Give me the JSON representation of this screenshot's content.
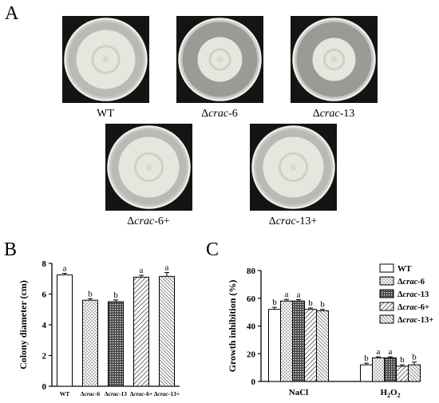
{
  "panels": {
    "a": "A",
    "b": "B",
    "c": "C"
  },
  "plates": [
    {
      "id": "wt",
      "pre": "WT",
      "it": "",
      "post": ""
    },
    {
      "id": "crac6",
      "pre": "Δ",
      "it": "crac",
      "post": "-6"
    },
    {
      "id": "crac13",
      "pre": "Δ",
      "it": "crac",
      "post": "-13"
    },
    {
      "id": "crac6c",
      "pre": "Δ",
      "it": "crac",
      "post": "-6+"
    },
    {
      "id": "crac13c",
      "pre": "Δ",
      "it": "crac",
      "post": "-13+"
    }
  ],
  "colors": {
    "plate_dark": "#141414",
    "agar": "#9a9b94",
    "colony": "#e6e6df",
    "bar_edge": "#000000"
  },
  "chart_data": [
    {
      "type": "bar",
      "ylabel": "Colony diameter (cm)",
      "ylim": [
        0,
        8
      ],
      "yticks": [
        0,
        2,
        4,
        6,
        8
      ],
      "categories": [
        {
          "pre": "WT",
          "it": "",
          "post": ""
        },
        {
          "pre": "Δ",
          "it": "crac",
          "post": "-6"
        },
        {
          "pre": "Δ",
          "it": "crac",
          "post": "-13"
        },
        {
          "pre": "Δ",
          "it": "crac",
          "post": "-6+"
        },
        {
          "pre": "Δ",
          "it": "crac",
          "post": "-13+"
        }
      ],
      "values": [
        7.25,
        5.6,
        5.5,
        7.1,
        7.15
      ],
      "errors": [
        0.1,
        0.1,
        0.12,
        0.12,
        0.25
      ],
      "letters": [
        "a",
        "b",
        "b",
        "a",
        "a"
      ],
      "patterns": [
        "none",
        "dots",
        "dense",
        "diag",
        "diag2"
      ]
    },
    {
      "type": "bar",
      "ylabel": "Growth inhibition (%)",
      "ylim": [
        0,
        80
      ],
      "yticks": [
        0,
        20,
        40,
        60,
        80
      ],
      "groups": [
        "NaCl",
        "H2O2"
      ],
      "series": [
        {
          "pre": "WT",
          "it": "",
          "post": "",
          "pattern": "none",
          "values": [
            52,
            12
          ],
          "errors": [
            1.5,
            1.2
          ],
          "letters": [
            "b",
            "b"
          ]
        },
        {
          "pre": "Δ",
          "it": "crac",
          "post": "-6",
          "pattern": "dots",
          "values": [
            58,
            17
          ],
          "errors": [
            1.2,
            0.8
          ],
          "letters": [
            "a",
            "a"
          ]
        },
        {
          "pre": "Δ",
          "it": "crac",
          "post": "-13",
          "pattern": "dense",
          "values": [
            58,
            17
          ],
          "errors": [
            1.0,
            0.8
          ],
          "letters": [
            "a",
            "a"
          ]
        },
        {
          "pre": "Δ",
          "it": "crac",
          "post": "-6+",
          "pattern": "diag",
          "values": [
            52,
            11
          ],
          "errors": [
            1.0,
            1.0
          ],
          "letters": [
            "b",
            "b"
          ]
        },
        {
          "pre": "Δ",
          "it": "crac",
          "post": "-13+",
          "pattern": "diag2",
          "values": [
            51,
            12
          ],
          "errors": [
            1.0,
            2.0
          ],
          "letters": [
            "b",
            "b"
          ]
        }
      ]
    }
  ]
}
